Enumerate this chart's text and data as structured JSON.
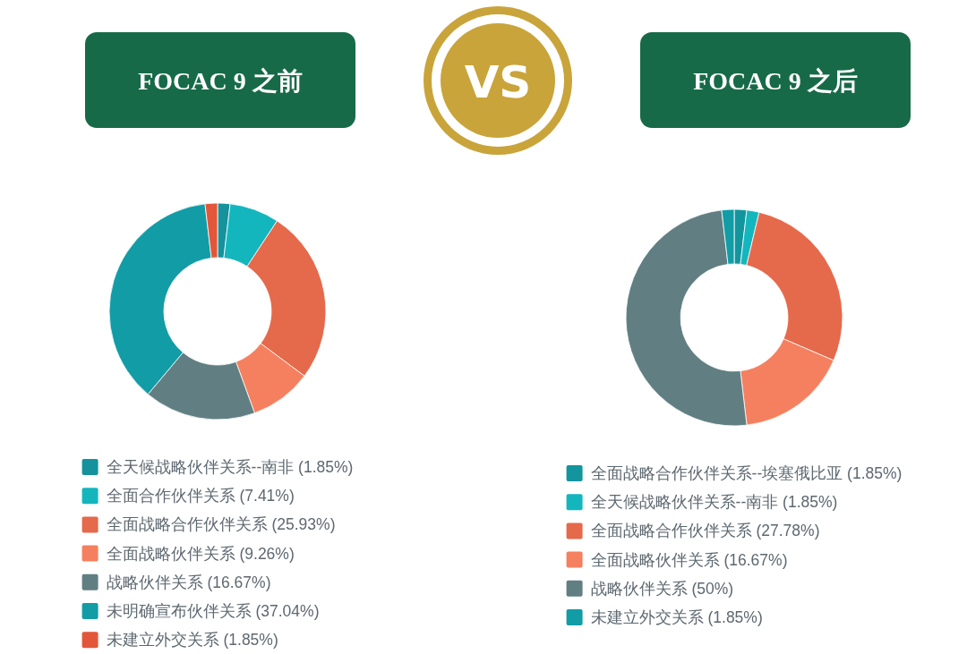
{
  "chart_data": [
    {
      "type": "donut",
      "title": "FOCAC 9 之前",
      "categories": [
        "全天候战略伙伴关系--南非",
        "全面合作伙伴关系",
        "全面战略合作伙伴关系",
        "全面战略伙伴关系",
        "战略伙伴关系",
        "未明确宣布伙伴关系",
        "未建立外交关系"
      ],
      "values": [
        1.85,
        7.41,
        25.93,
        9.26,
        16.67,
        37.04,
        1.85
      ],
      "colors": [
        "#15929b",
        "#14b6be",
        "#e5694b",
        "#f5805f",
        "#617f83",
        "#129ca6",
        "#e2573a"
      ],
      "value_labels": [
        "(1.85%)",
        "(7.41%)",
        "(25.93%)",
        "(9.26%)",
        "(16.67%)",
        "(37.04%)",
        "(1.85%)"
      ],
      "legend": "bottom"
    },
    {
      "type": "other",
      "title": "VS"
    },
    {
      "type": "donut",
      "title": "FOCAC 9 之后",
      "categories": [
        "全面战略合作伙伴关系--埃塞俄比亚",
        "全天候战略伙伴关系--南非",
        "全面战略合作伙伴关系",
        "全面战略伙伴关系",
        "战略伙伴关系",
        "未建立外交关系"
      ],
      "values": [
        1.85,
        1.85,
        27.78,
        16.67,
        50,
        1.85
      ],
      "colors": [
        "#13959e",
        "#14b6be",
        "#e5694b",
        "#f5805f",
        "#617f83",
        "#129ca6"
      ],
      "value_labels": [
        "(1.85%)",
        "(1.85%)",
        "(27.78%)",
        "(16.67%)",
        "(50%)",
        "(1.85%)"
      ],
      "legend": "bottom"
    }
  ]
}
